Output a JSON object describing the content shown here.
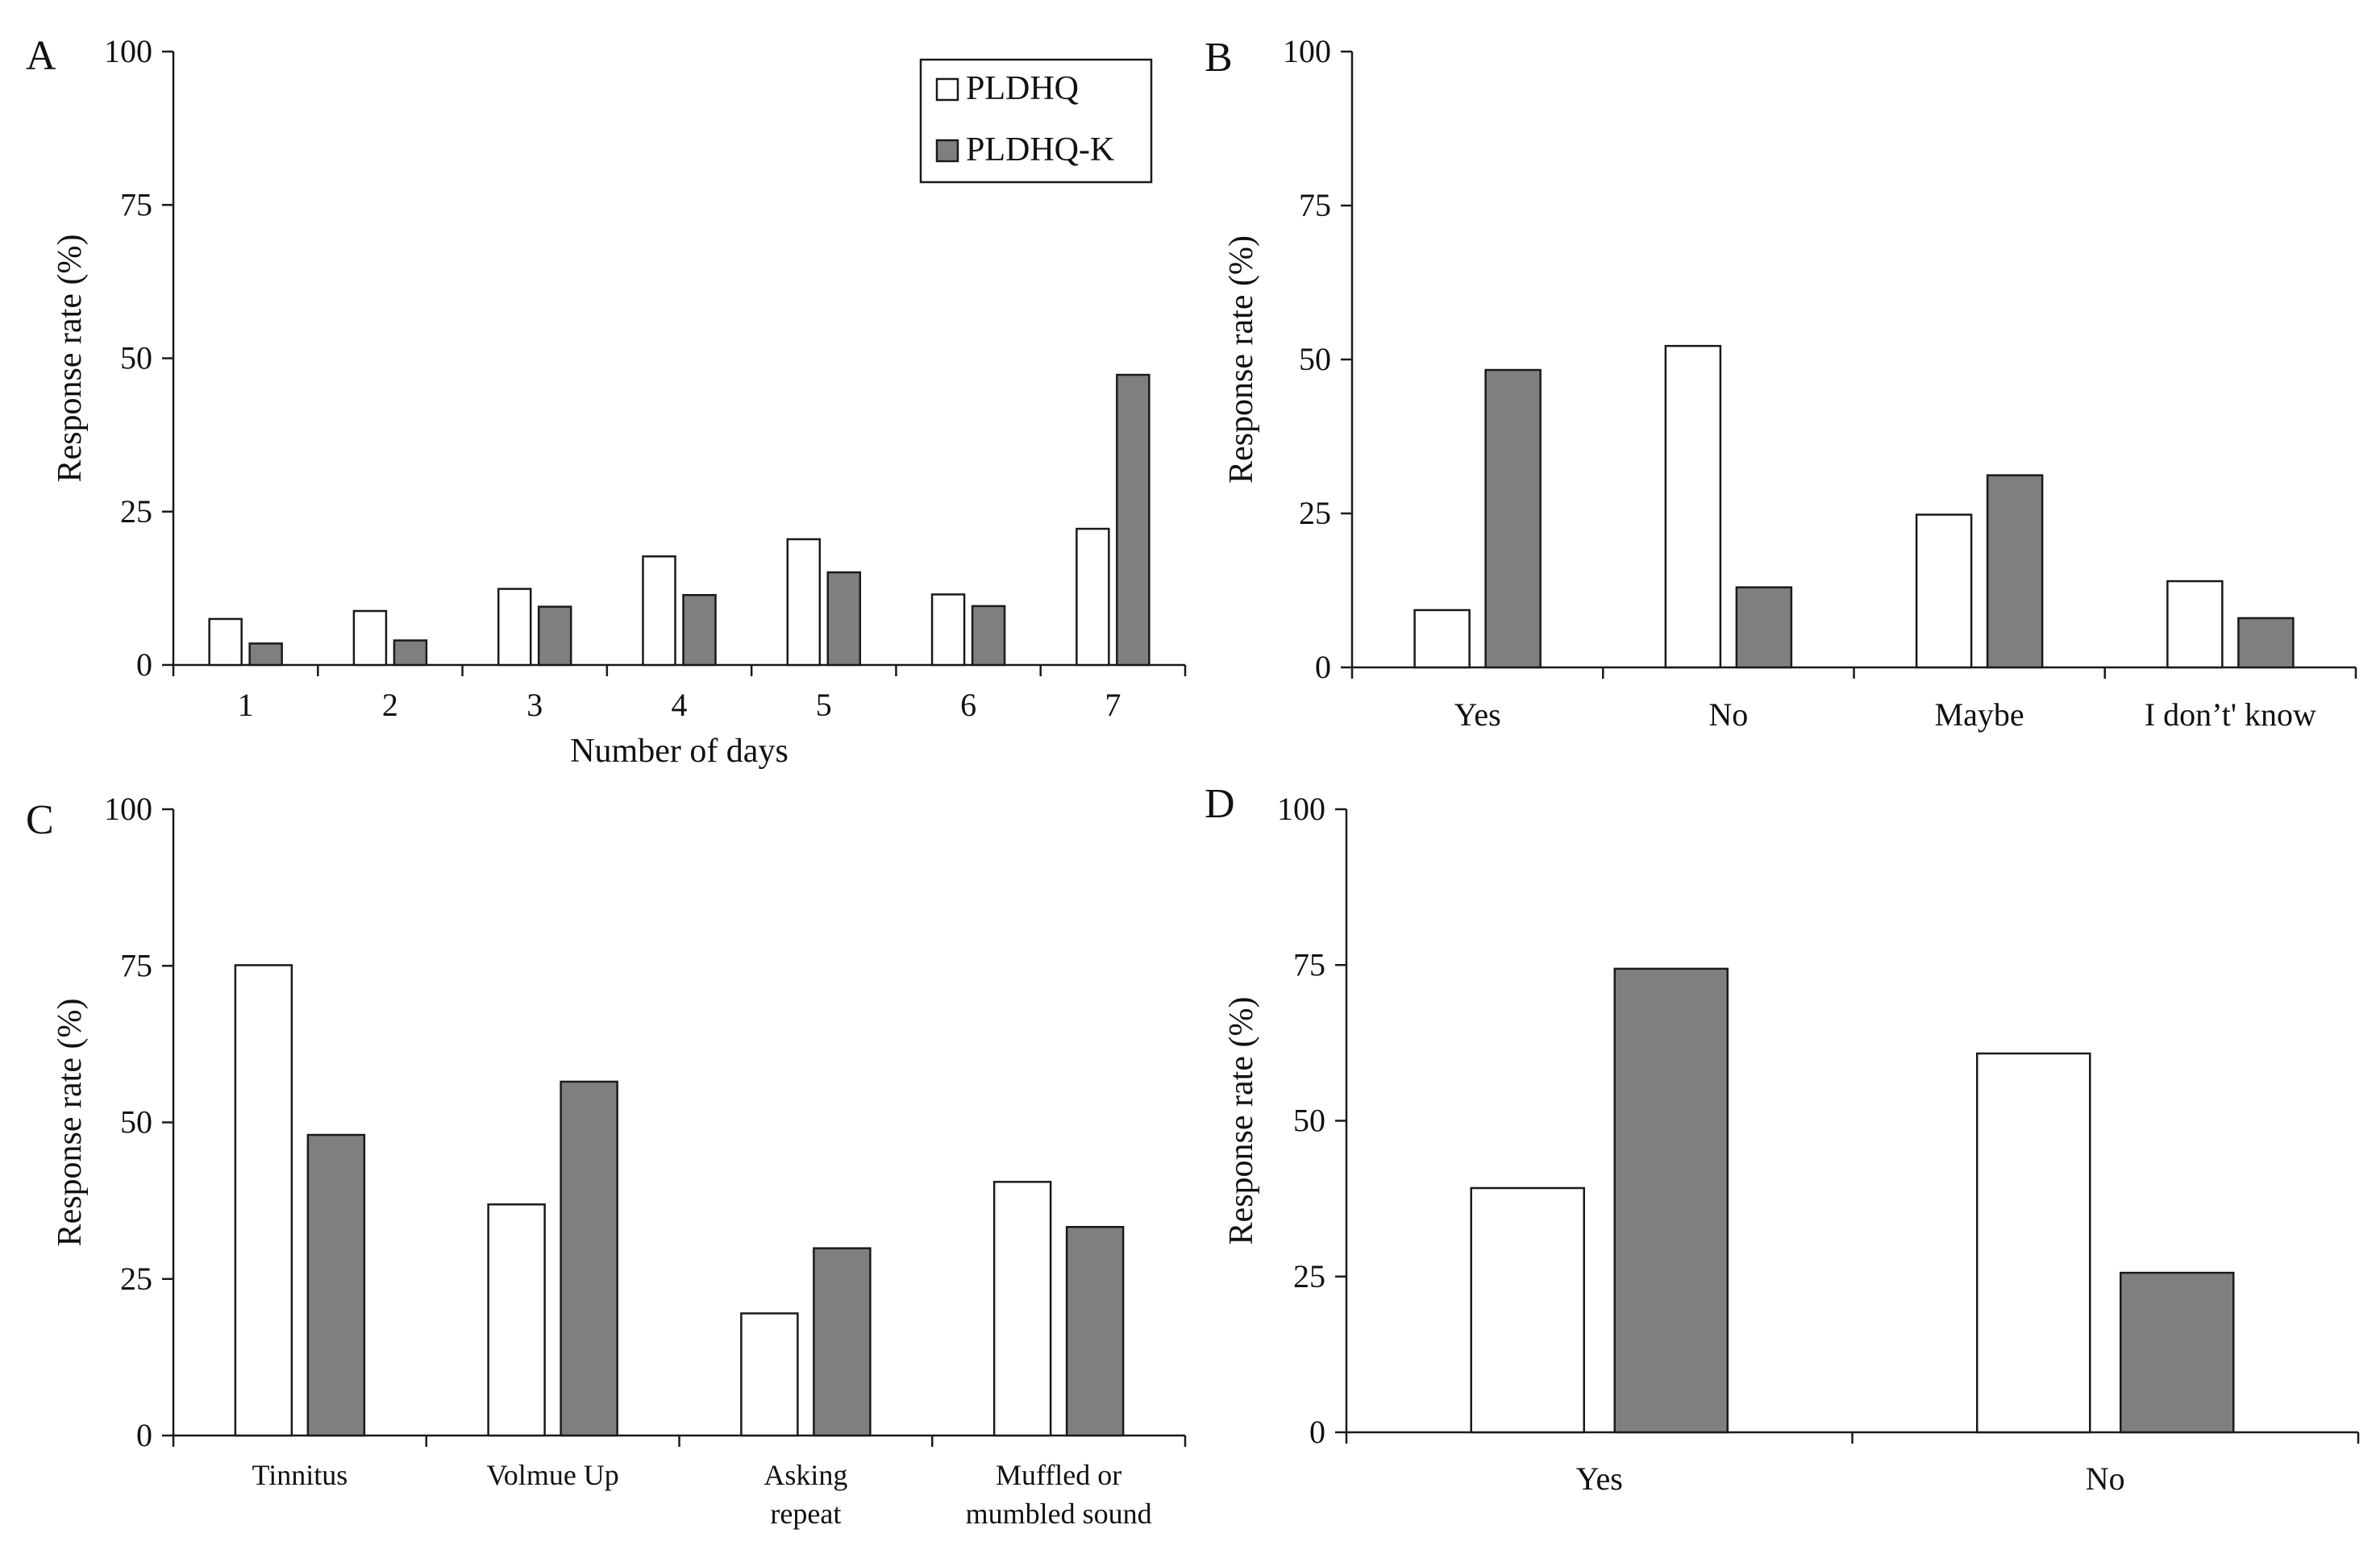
{
  "colors": {
    "PLDHQ": "#ffffff",
    "PLDHQ-K": "#7f7f7f",
    "stroke": "#1a1a1a"
  },
  "legend": {
    "items": [
      {
        "label": "PLDHQ",
        "color": "#ffffff"
      },
      {
        "label": "PLDHQ-K",
        "color": "#7f7f7f"
      }
    ]
  },
  "chart_data": [
    {
      "panel": "A",
      "type": "bar",
      "title": "",
      "xlabel": "Number of days",
      "ylabel": "Response rate (%)",
      "ylim": [
        0,
        100
      ],
      "yticks": [
        "0",
        "25",
        "50",
        "75",
        "100"
      ],
      "categories": [
        [
          "1"
        ],
        [
          "2"
        ],
        [
          "3"
        ],
        [
          "4"
        ],
        [
          "5"
        ],
        [
          "6"
        ],
        [
          "7"
        ]
      ],
      "series": [
        {
          "name": "PLDHQ",
          "values": [
            7.5,
            8.8,
            12.4,
            17.7,
            20.5,
            11.5,
            22.2
          ]
        },
        {
          "name": "PLDHQ-K",
          "values": [
            3.5,
            4.0,
            9.5,
            11.4,
            15.1,
            9.6,
            47.3
          ]
        }
      ]
    },
    {
      "panel": "B",
      "type": "bar",
      "title": "",
      "xlabel": "",
      "ylabel": "Response rate (%)",
      "ylim": [
        0,
        100
      ],
      "yticks": [
        "0",
        "25",
        "50",
        "75",
        "100"
      ],
      "categories": [
        [
          "Yes"
        ],
        [
          "No"
        ],
        [
          "Maybe"
        ],
        [
          "I don’t' know"
        ]
      ],
      "series": [
        {
          "name": "PLDHQ",
          "values": [
            9.3,
            52.2,
            24.8,
            14.0
          ]
        },
        {
          "name": "PLDHQ-K",
          "values": [
            48.3,
            13.0,
            31.2,
            8.0
          ]
        }
      ]
    },
    {
      "panel": "C",
      "type": "bar",
      "title": "",
      "xlabel": "",
      "ylabel": "Response rate (%)",
      "ylim": [
        0,
        100
      ],
      "yticks": [
        "0",
        "25",
        "50",
        "75",
        "100"
      ],
      "categories": [
        [
          "Tinnitus"
        ],
        [
          "Volmue Up"
        ],
        [
          "Asking",
          "repeat"
        ],
        [
          "Muffled or",
          "mumbled sound"
        ]
      ],
      "series": [
        {
          "name": "PLDHQ",
          "values": [
            75.1,
            36.9,
            19.5,
            40.5
          ]
        },
        {
          "name": "PLDHQ-K",
          "values": [
            48.0,
            56.5,
            29.9,
            33.3
          ]
        }
      ]
    },
    {
      "panel": "D",
      "type": "bar",
      "title": "",
      "xlabel": "",
      "ylabel": "Response rate (%)",
      "ylim": [
        0,
        100
      ],
      "yticks": [
        "0",
        "25",
        "50",
        "75",
        "100"
      ],
      "categories": [
        [
          "Yes"
        ],
        [
          "No"
        ]
      ],
      "series": [
        {
          "name": "PLDHQ",
          "values": [
            39.2,
            60.8
          ]
        },
        {
          "name": "PLDHQ-K",
          "values": [
            74.4,
            25.6
          ]
        }
      ]
    }
  ]
}
